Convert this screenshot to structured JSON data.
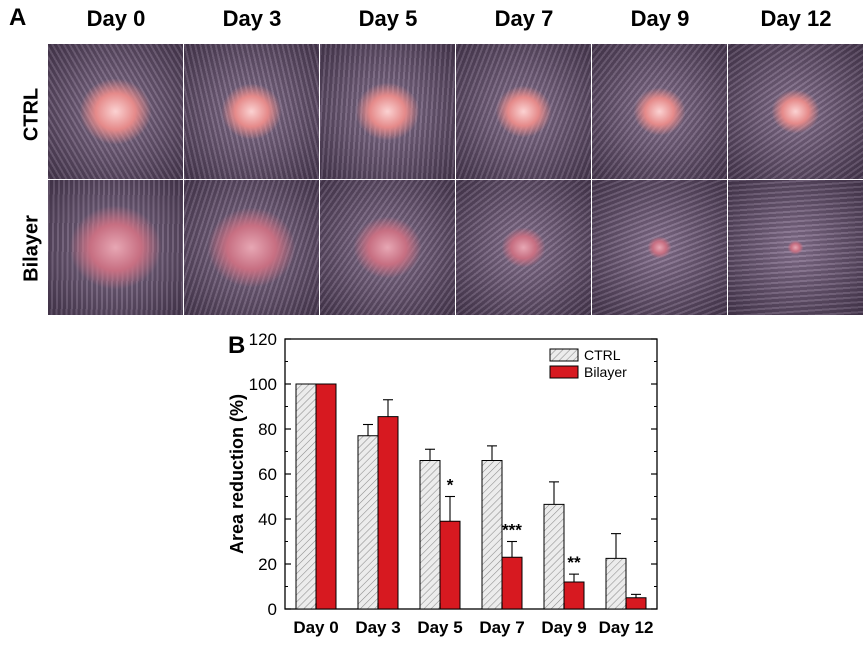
{
  "panel_a": {
    "letter": "A",
    "day_labels": [
      "Day 0",
      "Day 3",
      "Day 5",
      "Day 7",
      "Day 9",
      "Day 12"
    ],
    "row_labels": [
      "CTRL",
      "Bilayer"
    ]
  },
  "panel_b": {
    "letter": "B"
  },
  "colors": {
    "ctrl_fill": "#d9d9d9",
    "bilayer_fill": "#d71920",
    "skin_dark": "#4a3a52",
    "skin_light": "#8a7593",
    "wound_ctrl": "#e58a8a",
    "wound_bilayer": "#c76f82"
  },
  "chart_data": {
    "type": "bar",
    "categories": [
      "Day 0",
      "Day 3",
      "Day 5",
      "Day 7",
      "Day 9",
      "Day 12"
    ],
    "series": [
      {
        "name": "CTRL",
        "values": [
          100,
          77,
          66,
          66,
          46.5,
          22.5
        ],
        "errors": [
          0,
          5,
          5,
          6.5,
          10,
          11
        ]
      },
      {
        "name": "Bilayer",
        "values": [
          100,
          85.5,
          39,
          23,
          12,
          5
        ],
        "errors": [
          0,
          7.5,
          11,
          7,
          3.5,
          1.5
        ]
      }
    ],
    "significance": [
      "",
      "",
      "*",
      "***",
      "**",
      ""
    ],
    "ylabel": "Area reduction (%)",
    "ylim": [
      0,
      120
    ],
    "yticks": [
      "0",
      "20",
      "40",
      "60",
      "80",
      "100",
      "120"
    ],
    "legend_position": "top-right",
    "grid": false
  }
}
